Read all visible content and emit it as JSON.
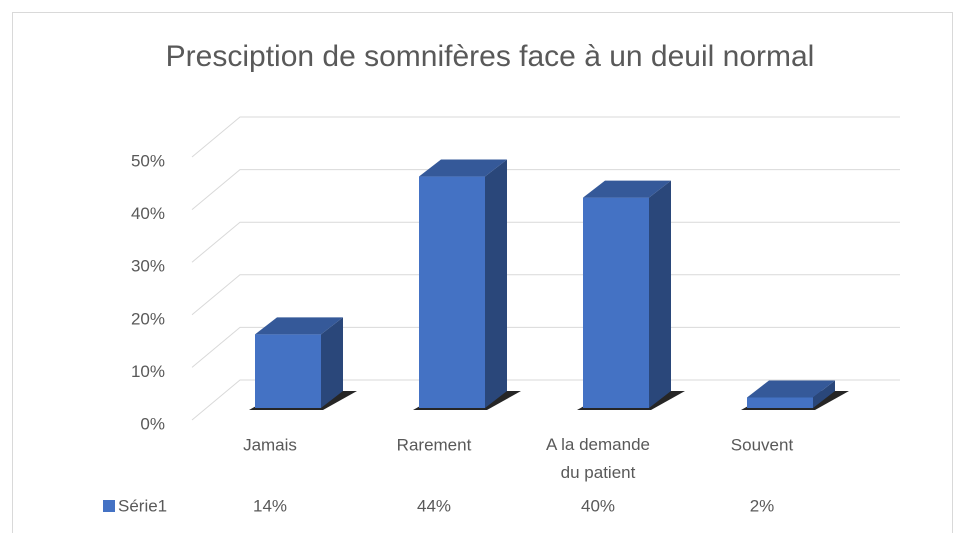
{
  "chart_data": {
    "type": "bar3d",
    "title": "Presciption de somnifères face à un deuil normal",
    "categories": [
      "Jamais",
      "Rarement",
      "A la demande du patient",
      "Souvent"
    ],
    "series": [
      {
        "name": "Série1",
        "color": "#4472c4",
        "values": [
          14,
          44,
          40,
          2
        ],
        "value_labels": [
          "14%",
          "44%",
          "40%",
          "2%"
        ]
      }
    ],
    "ylim": [
      0,
      50
    ],
    "yticks": [
      {
        "value": 0,
        "label": "0%"
      },
      {
        "value": 10,
        "label": "10%"
      },
      {
        "value": 20,
        "label": "20%"
      },
      {
        "value": 30,
        "label": "30%"
      },
      {
        "value": 40,
        "label": "40%"
      },
      {
        "value": 50,
        "label": "50%"
      }
    ],
    "grid": true
  }
}
